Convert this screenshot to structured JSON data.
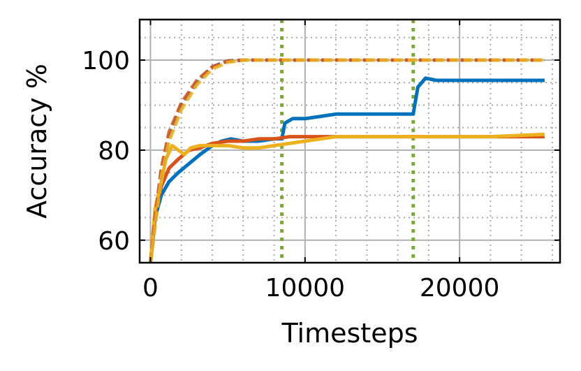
{
  "chart_data": {
    "type": "line",
    "xlabel": "Timesteps",
    "ylabel": "Accuracy %",
    "xlim": [
      -700,
      26500
    ],
    "ylim": [
      55,
      109
    ],
    "x_ticks": [
      0,
      10000,
      20000
    ],
    "x_tick_labels": [
      "0",
      "10000",
      "20000"
    ],
    "y_ticks": [
      60,
      80,
      100
    ],
    "y_tick_labels": [
      "60",
      "80",
      "100"
    ],
    "grid": true,
    "minor_grid": true,
    "legend": "none",
    "vlines": [
      {
        "x": 8500,
        "color": "#77AC30",
        "style": "dotted"
      },
      {
        "x": 17000,
        "color": "#77AC30",
        "style": "dotted"
      }
    ],
    "series": [
      {
        "color": "#0072BD",
        "style": "solid",
        "x": [
          0,
          300,
          700,
          1200,
          1800,
          2500,
          3200,
          4000,
          4600,
          5200,
          6000,
          7000,
          8000,
          8500,
          8700,
          9200,
          10000,
          11000,
          12000,
          14000,
          16000,
          17000,
          17300,
          17800,
          18500,
          19500,
          20500,
          22000,
          23500,
          25500
        ],
        "y": [
          55,
          65,
          70,
          73,
          75,
          77,
          79,
          81,
          82,
          82.5,
          82,
          82,
          82.5,
          82.5,
          86,
          87,
          87,
          87.5,
          88,
          88,
          88,
          88,
          94,
          96,
          95.5,
          95.5,
          95.5,
          95.5,
          95.5,
          95.5
        ]
      },
      {
        "color": "#D95319",
        "style": "solid",
        "x": [
          0,
          300,
          700,
          1200,
          1800,
          2500,
          3200,
          4000,
          5000,
          6000,
          7000,
          8000,
          9000,
          10000,
          12000,
          14000,
          16000,
          18000,
          20000,
          22000,
          25500
        ],
        "y": [
          55,
          66,
          72,
          76,
          78,
          80,
          80.5,
          81.5,
          82,
          82,
          82.5,
          82.5,
          83,
          83,
          83,
          83,
          83,
          83,
          83,
          83,
          83
        ]
      },
      {
        "color": "#EDB120",
        "style": "solid",
        "x": [
          0,
          300,
          700,
          1000,
          1400,
          1800,
          2200,
          2600,
          3200,
          4000,
          5000,
          6000,
          7000,
          8000,
          9000,
          10000,
          11000,
          12000,
          14000,
          16000,
          18000,
          20000,
          22000,
          25500
        ],
        "y": [
          55,
          67,
          73,
          78,
          81,
          80,
          79,
          80.5,
          81,
          81,
          81,
          80.5,
          80.5,
          81,
          81.5,
          82,
          82.5,
          83,
          83,
          83,
          83,
          83,
          83,
          83.5
        ]
      },
      {
        "color": "#0072BD",
        "style": "dashed",
        "x": [
          0,
          300,
          700,
          1200,
          2000,
          3000,
          4000,
          5000,
          6000,
          8000,
          12000,
          17000,
          20000,
          25500
        ],
        "y": [
          55,
          64,
          75,
          83,
          90,
          95,
          98.5,
          99.8,
          100,
          100,
          100,
          100,
          100,
          100
        ]
      },
      {
        "color": "#D95319",
        "style": "dashed",
        "x": [
          0,
          300,
          700,
          1200,
          2000,
          3000,
          4000,
          5000,
          6000,
          8000,
          12000,
          17000,
          20000,
          25500
        ],
        "y": [
          55,
          65,
          76,
          84,
          90.5,
          95.5,
          98.5,
          99.8,
          100,
          100,
          100,
          100,
          100,
          100
        ]
      },
      {
        "color": "#EDB120",
        "style": "dashed",
        "x": [
          0,
          300,
          700,
          1200,
          2000,
          3000,
          4000,
          5000,
          6000,
          8000,
          12000,
          17000,
          20000,
          25500
        ],
        "y": [
          55,
          63,
          74,
          82,
          89,
          94.5,
          98,
          99.5,
          100,
          100,
          100,
          100,
          100,
          100
        ]
      }
    ]
  }
}
